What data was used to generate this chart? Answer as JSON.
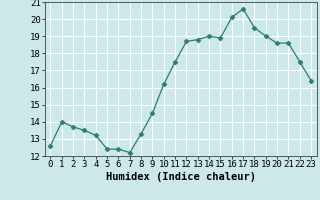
{
  "xlabel": "Humidex (Indice chaleur)",
  "x": [
    0,
    1,
    2,
    3,
    4,
    5,
    6,
    7,
    8,
    9,
    10,
    11,
    12,
    13,
    14,
    15,
    16,
    17,
    18,
    19,
    20,
    21,
    22,
    23
  ],
  "y": [
    12.6,
    14.0,
    13.7,
    13.5,
    13.2,
    12.4,
    12.4,
    12.2,
    13.3,
    14.5,
    16.2,
    17.5,
    18.7,
    18.8,
    19.0,
    18.9,
    20.1,
    20.6,
    19.5,
    19.0,
    18.6,
    18.6,
    17.5,
    16.4
  ],
  "ylim": [
    12,
    21
  ],
  "xlim": [
    -0.5,
    23.5
  ],
  "yticks": [
    12,
    13,
    14,
    15,
    16,
    17,
    18,
    19,
    20,
    21
  ],
  "xticks": [
    0,
    1,
    2,
    3,
    4,
    5,
    6,
    7,
    8,
    9,
    10,
    11,
    12,
    13,
    14,
    15,
    16,
    17,
    18,
    19,
    20,
    21,
    22,
    23
  ],
  "line_color": "#2e7d6e",
  "marker": "D",
  "marker_size": 2.5,
  "bg_color": "#cce8e8",
  "grid_color": "#ffffff",
  "label_fontsize": 7.5,
  "tick_fontsize": 6.5
}
